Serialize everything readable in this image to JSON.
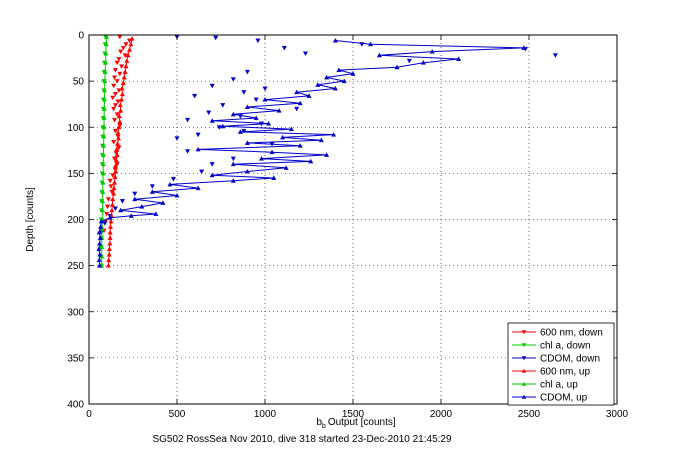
{
  "chart_data": {
    "type": "scatter",
    "title": "",
    "caption": "SG502 RossSea Nov 2010, dive 318 started 23-Dec-2010 21:45:29",
    "xlabel": "Output [counts]",
    "xlabel_symbol": "b",
    "xlabel_subscript": "b",
    "ylabel": "Depth [counts]",
    "xlim": [
      0,
      3000
    ],
    "ylim": [
      0,
      400
    ],
    "y_reversed": true,
    "grid": true,
    "legend_position": "bottom-right",
    "xticks": [
      0,
      500,
      1000,
      1500,
      2000,
      2500,
      3000
    ],
    "xtick_labels": [
      "0",
      "500",
      "1000",
      "1500",
      "2000",
      "2500",
      "3000"
    ],
    "yticks": [
      0,
      50,
      100,
      150,
      200,
      250,
      300,
      350,
      400
    ],
    "ytick_labels": [
      "0",
      "50",
      "100",
      "150",
      "200",
      "250",
      "300",
      "350",
      "400"
    ],
    "series": [
      {
        "name": "600 nm, down",
        "color": "#ff0000",
        "marker": "triangle-down",
        "line": false,
        "points": [
          [
            175,
            2
          ],
          [
            230,
            6
          ],
          [
            210,
            10
          ],
          [
            195,
            14
          ],
          [
            180,
            18
          ],
          [
            205,
            22
          ],
          [
            170,
            26
          ],
          [
            160,
            30
          ],
          [
            185,
            34
          ],
          [
            150,
            38
          ],
          [
            175,
            42
          ],
          [
            145,
            46
          ],
          [
            160,
            50
          ],
          [
            140,
            55
          ],
          [
            170,
            60
          ],
          [
            150,
            64
          ],
          [
            135,
            68
          ],
          [
            165,
            72
          ],
          [
            150,
            76
          ],
          [
            140,
            80
          ],
          [
            160,
            86
          ],
          [
            145,
            92
          ],
          [
            175,
            98
          ],
          [
            150,
            104
          ],
          [
            165,
            110
          ],
          [
            140,
            116
          ],
          [
            170,
            122
          ],
          [
            155,
            128
          ],
          [
            145,
            134
          ],
          [
            160,
            140
          ],
          [
            150,
            146
          ],
          [
            135,
            152
          ],
          [
            120,
            158
          ],
          [
            125,
            164
          ],
          [
            130,
            170
          ],
          [
            110,
            178
          ],
          [
            105,
            186
          ],
          [
            100,
            194
          ],
          [
            95,
            202
          ],
          [
            85,
            212
          ]
        ]
      },
      {
        "name": "chl a, down",
        "color": "#00cc00",
        "marker": "triangle-down",
        "line": false,
        "points": [
          [
            95,
            2
          ],
          [
            92,
            10
          ],
          [
            90,
            20
          ],
          [
            88,
            30
          ],
          [
            86,
            40
          ],
          [
            85,
            50
          ],
          [
            84,
            60
          ],
          [
            82,
            70
          ],
          [
            81,
            80
          ],
          [
            80,
            90
          ],
          [
            79,
            100
          ],
          [
            78,
            110
          ],
          [
            77,
            120
          ],
          [
            76,
            130
          ],
          [
            76,
            140
          ],
          [
            75,
            150
          ],
          [
            74,
            160
          ],
          [
            73,
            170
          ],
          [
            72,
            180
          ],
          [
            71,
            190
          ],
          [
            70,
            200
          ],
          [
            70,
            210
          ],
          [
            69,
            220
          ],
          [
            68,
            230
          ],
          [
            68,
            240
          ],
          [
            68,
            250
          ]
        ]
      },
      {
        "name": "CDOM, down",
        "color": "#0000cc",
        "marker": "triangle-down",
        "line": false,
        "points": [
          [
            500,
            2
          ],
          [
            720,
            3
          ],
          [
            960,
            6
          ],
          [
            1550,
            10
          ],
          [
            2480,
            15
          ],
          [
            2650,
            22
          ],
          [
            1820,
            28
          ],
          [
            1110,
            14
          ],
          [
            1230,
            20
          ],
          [
            900,
            40
          ],
          [
            820,
            48
          ],
          [
            700,
            55
          ],
          [
            1000,
            58
          ],
          [
            880,
            62
          ],
          [
            600,
            66
          ],
          [
            950,
            70
          ],
          [
            760,
            76
          ],
          [
            1180,
            80
          ],
          [
            680,
            84
          ],
          [
            860,
            88
          ],
          [
            560,
            92
          ],
          [
            980,
            96
          ],
          [
            740,
            100
          ],
          [
            880,
            104
          ],
          [
            620,
            108
          ],
          [
            500,
            112
          ],
          [
            1040,
            118
          ],
          [
            560,
            126
          ],
          [
            820,
            134
          ],
          [
            700,
            140
          ],
          [
            640,
            148
          ],
          [
            480,
            156
          ],
          [
            360,
            164
          ],
          [
            260,
            172
          ],
          [
            190,
            180
          ],
          [
            150,
            188
          ],
          [
            120,
            196
          ],
          [
            90,
            204
          ],
          [
            70,
            214
          ]
        ]
      },
      {
        "name": "600 nm, up",
        "color": "#ff0000",
        "marker": "triangle-up",
        "line": true,
        "points": [
          [
            110,
            250
          ],
          [
            112,
            244
          ],
          [
            115,
            238
          ],
          [
            116,
            232
          ],
          [
            118,
            226
          ],
          [
            120,
            220
          ],
          [
            120,
            214
          ],
          [
            122,
            208
          ],
          [
            125,
            202
          ],
          [
            128,
            196
          ],
          [
            130,
            190
          ],
          [
            133,
            184
          ],
          [
            135,
            178
          ],
          [
            140,
            172
          ],
          [
            142,
            166
          ],
          [
            145,
            160
          ],
          [
            148,
            154
          ],
          [
            152,
            148
          ],
          [
            150,
            142
          ],
          [
            156,
            136
          ],
          [
            160,
            130
          ],
          [
            158,
            124
          ],
          [
            162,
            118
          ],
          [
            168,
            112
          ],
          [
            165,
            106
          ],
          [
            170,
            100
          ],
          [
            175,
            94
          ],
          [
            172,
            88
          ],
          [
            180,
            82
          ],
          [
            178,
            76
          ],
          [
            185,
            70
          ],
          [
            190,
            64
          ],
          [
            188,
            58
          ],
          [
            195,
            52
          ],
          [
            200,
            46
          ],
          [
            205,
            40
          ],
          [
            210,
            34
          ],
          [
            215,
            28
          ],
          [
            222,
            22
          ],
          [
            230,
            16
          ],
          [
            238,
            10
          ],
          [
            245,
            4
          ]
        ]
      },
      {
        "name": "chl a, up",
        "color": "#00cc00",
        "marker": "triangle-up",
        "line": true,
        "points": [
          [
            72,
            250
          ],
          [
            72,
            240
          ],
          [
            73,
            230
          ],
          [
            73,
            220
          ],
          [
            74,
            210
          ],
          [
            75,
            200
          ],
          [
            76,
            190
          ],
          [
            77,
            180
          ],
          [
            78,
            170
          ],
          [
            79,
            160
          ],
          [
            80,
            150
          ],
          [
            81,
            140
          ],
          [
            82,
            130
          ],
          [
            83,
            120
          ],
          [
            84,
            110
          ],
          [
            85,
            100
          ],
          [
            86,
            90
          ],
          [
            87,
            80
          ],
          [
            88,
            70
          ],
          [
            89,
            60
          ],
          [
            90,
            50
          ],
          [
            92,
            40
          ],
          [
            94,
            30
          ],
          [
            96,
            20
          ],
          [
            98,
            10
          ],
          [
            100,
            2
          ]
        ]
      },
      {
        "name": "CDOM, up",
        "color": "#0000cc",
        "marker": "triangle-up",
        "line": true,
        "points": [
          [
            60,
            250
          ],
          [
            58,
            244
          ],
          [
            62,
            238
          ],
          [
            56,
            232
          ],
          [
            60,
            226
          ],
          [
            64,
            220
          ],
          [
            58,
            214
          ],
          [
            66,
            208
          ],
          [
            70,
            202
          ],
          [
            120,
            198
          ],
          [
            240,
            196
          ],
          [
            380,
            194
          ],
          [
            180,
            190
          ],
          [
            300,
            186
          ],
          [
            420,
            182
          ],
          [
            260,
            178
          ],
          [
            500,
            174
          ],
          [
            360,
            170
          ],
          [
            620,
            166
          ],
          [
            460,
            162
          ],
          [
            820,
            158
          ],
          [
            1050,
            155
          ],
          [
            700,
            152
          ],
          [
            900,
            148
          ],
          [
            1120,
            144
          ],
          [
            820,
            140
          ],
          [
            1260,
            137
          ],
          [
            980,
            134
          ],
          [
            1350,
            130
          ],
          [
            1040,
            127
          ],
          [
            620,
            124
          ],
          [
            1200,
            120
          ],
          [
            900,
            117
          ],
          [
            1320,
            114
          ],
          [
            1100,
            111
          ],
          [
            1390,
            108
          ],
          [
            860,
            105
          ],
          [
            1150,
            102
          ],
          [
            760,
            99
          ],
          [
            1020,
            96
          ],
          [
            700,
            93
          ],
          [
            950,
            90
          ],
          [
            820,
            86
          ],
          [
            1080,
            82
          ],
          [
            900,
            78
          ],
          [
            1200,
            74
          ],
          [
            1000,
            70
          ],
          [
            1250,
            66
          ],
          [
            1180,
            62
          ],
          [
            1400,
            58
          ],
          [
            1300,
            54
          ],
          [
            1450,
            50
          ],
          [
            1350,
            46
          ],
          [
            1500,
            42
          ],
          [
            1420,
            38
          ],
          [
            1750,
            35
          ],
          [
            1900,
            30
          ],
          [
            2100,
            26
          ],
          [
            1650,
            22
          ],
          [
            1950,
            18
          ],
          [
            2470,
            14
          ],
          [
            1600,
            10
          ],
          [
            1400,
            6
          ]
        ]
      }
    ]
  }
}
